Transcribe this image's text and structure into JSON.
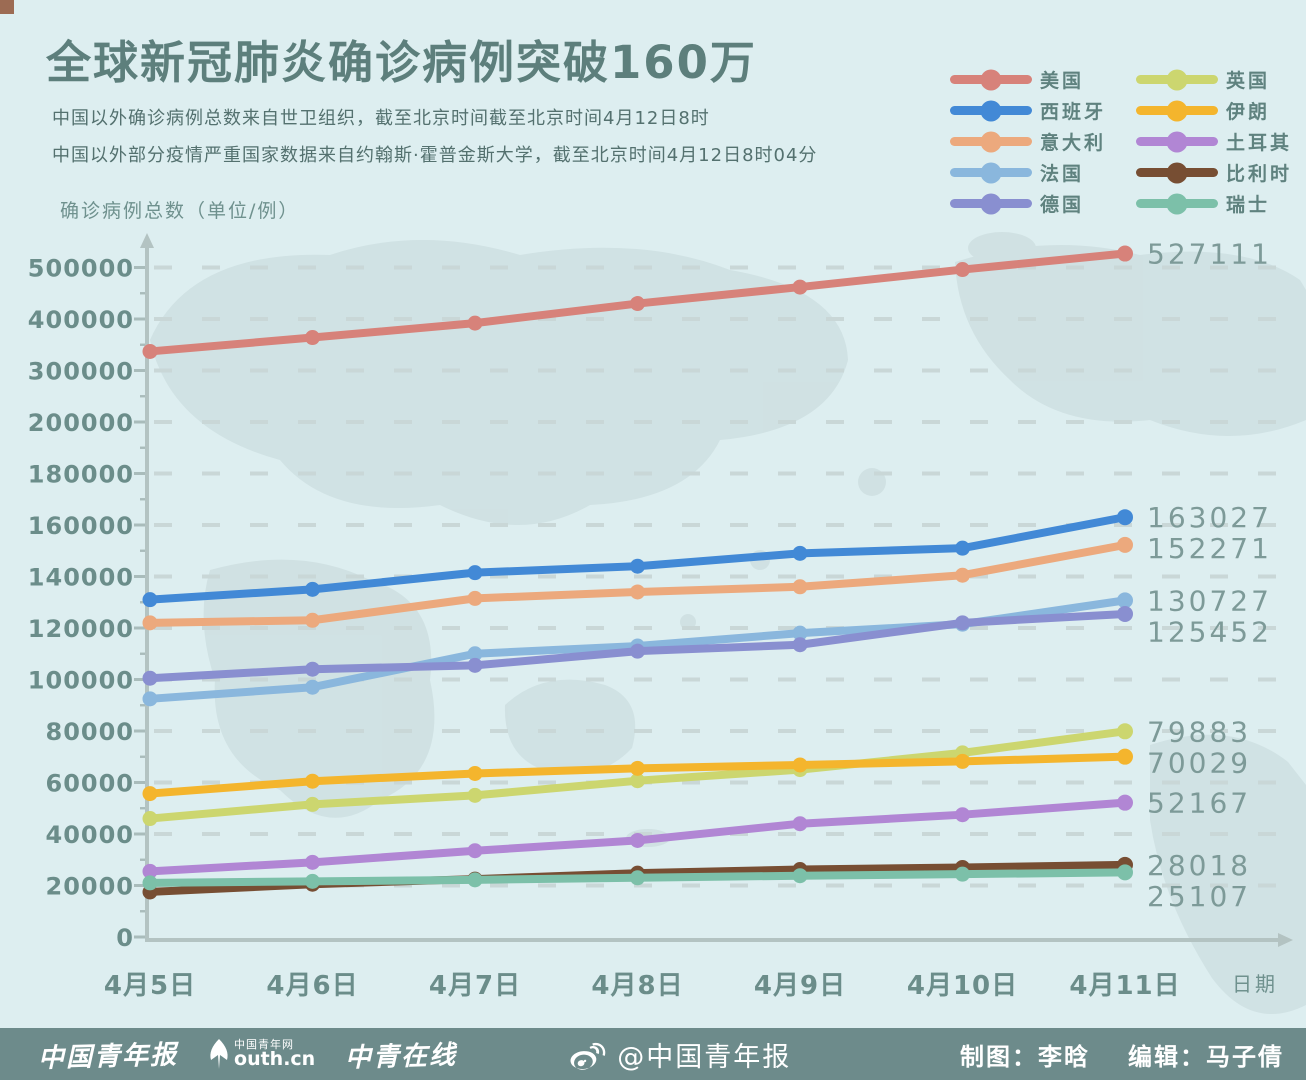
{
  "header": {
    "title": "全球新冠肺炎确诊病例突破160万",
    "subtitle_line1": "中国以外确诊病例总数来自世卫组织，截至北京时间截至北京时间4月12日8时",
    "subtitle_line2": "中国以外部分疫情严重国家数据来自约翰斯·霍普金斯大学，截至北京时间4月12日8时04分"
  },
  "chart_data": {
    "type": "line",
    "title": "全球新冠肺炎确诊病例突破160万",
    "y_axis_title": "确诊病例总数（单位/例）",
    "x_axis_title": "日期",
    "categories": [
      "4月5日",
      "4月6日",
      "4月7日",
      "4月8日",
      "4月9日",
      "4月10日",
      "4月11日"
    ],
    "y_ticks": [
      0,
      20000,
      40000,
      60000,
      80000,
      100000,
      120000,
      140000,
      160000,
      180000,
      200000,
      300000,
      400000,
      500000
    ],
    "y_axis_note": "piecewise scale: 20000 per step up to 200000, then 100000 per step",
    "grid": "dashed horizontal",
    "legend_position": "top-right",
    "series": [
      {
        "name": "美国",
        "color": "#d7827a",
        "values": [
          337000,
          364000,
          392000,
          430000,
          462000,
          496000,
          527111
        ],
        "end_label": "527111"
      },
      {
        "name": "西班牙",
        "color": "#4289d6",
        "values": [
          131000,
          135000,
          141500,
          144000,
          149000,
          151000,
          163027
        ],
        "end_label": "163027"
      },
      {
        "name": "意大利",
        "color": "#eca97d",
        "values": [
          122000,
          123000,
          131500,
          134000,
          136000,
          140500,
          152271
        ],
        "end_label": "152271"
      },
      {
        "name": "法国",
        "color": "#8ab7dd",
        "values": [
          92500,
          97000,
          110000,
          113000,
          118000,
          121500,
          130727
        ],
        "end_label": "130727"
      },
      {
        "name": "德国",
        "color": "#898fd0",
        "values": [
          100500,
          104000,
          105500,
          111000,
          113500,
          122000,
          125452
        ],
        "end_label": "125452"
      },
      {
        "name": "英国",
        "color": "#ccd66f",
        "values": [
          46000,
          51500,
          55000,
          60700,
          65000,
          71500,
          79883
        ],
        "end_label": "79883"
      },
      {
        "name": "伊朗",
        "color": "#f4b52d",
        "values": [
          55700,
          60500,
          63500,
          65500,
          66800,
          68200,
          70029
        ],
        "end_label": "70029"
      },
      {
        "name": "土耳其",
        "color": "#b186d4",
        "values": [
          25500,
          29000,
          33500,
          37500,
          44000,
          47500,
          52167
        ],
        "end_label": "52167"
      },
      {
        "name": "比利时",
        "color": "#774e33",
        "values": [
          17500,
          20500,
          22500,
          24800,
          26200,
          27000,
          28018
        ],
        "end_label": "28018"
      },
      {
        "name": "瑞士",
        "color": "#7cc0a9",
        "values": [
          21000,
          21600,
          22200,
          23000,
          23800,
          24400,
          25107
        ],
        "end_label": "25107"
      }
    ]
  },
  "footer": {
    "logo_china_youth_daily": "中国青年报",
    "logo_youth_top": "中国青年网",
    "logo_youth_main": "outh.cn",
    "logo_zhongqing_online": "中青在线",
    "weibo_handle": "@中国青年报",
    "credit_design": "制图：李晗",
    "credit_editor": "编辑：马子倩"
  }
}
